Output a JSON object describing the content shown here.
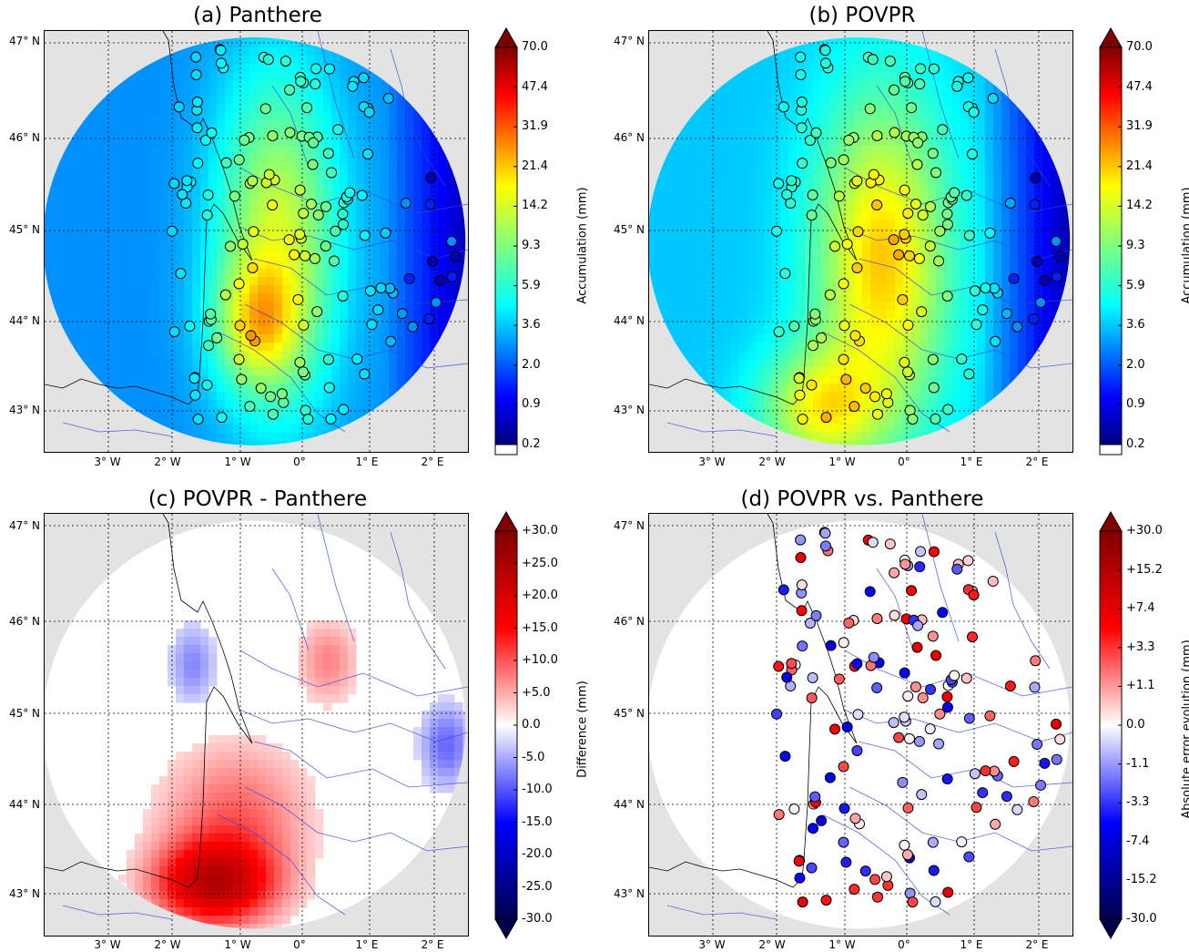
{
  "panels": [
    {
      "id": "a",
      "title": "(a) Panthere",
      "colorbar": {
        "label": "Accumulation (mm)",
        "ticks": [
          "70.0",
          "47.4",
          "31.9",
          "21.4",
          "14.2",
          "9.3",
          "5.9",
          "3.6",
          "2.0",
          "0.9",
          "0.2"
        ],
        "colormap": "jet",
        "extend": "max"
      }
    },
    {
      "id": "b",
      "title": "(b) POVPR",
      "colorbar": {
        "label": "Accumulation (mm)",
        "ticks": [
          "70.0",
          "47.4",
          "31.9",
          "21.4",
          "14.2",
          "9.3",
          "5.9",
          "3.6",
          "2.0",
          "0.9",
          "0.2"
        ],
        "colormap": "jet",
        "extend": "max"
      }
    },
    {
      "id": "c",
      "title": "(c) POVPR - Panthere",
      "colorbar": {
        "label": "Difference (mm)",
        "ticks": [
          "+30.0",
          "+25.0",
          "+20.0",
          "+15.0",
          "+10.0",
          "+5.0",
          "0.0",
          "-5.0",
          "-10.0",
          "-15.0",
          "-20.0",
          "-25.0",
          "-30.0"
        ],
        "colormap": "seismic",
        "extend": "both"
      }
    },
    {
      "id": "d",
      "title": "(d) POVPR vs. Panthere",
      "colorbar": {
        "label": "Absolute error evolution (mm)",
        "ticks": [
          "+30.0",
          "+15.2",
          "+7.4",
          "+3.3",
          "+1.1",
          "0.0",
          "-1.1",
          "-3.3",
          "-7.4",
          "-15.2",
          "-30.0"
        ],
        "colormap": "seismic",
        "extend": "both"
      }
    }
  ],
  "axes": {
    "lat_labels": [
      "47° N",
      "46° N",
      "45° N",
      "44° N",
      "43° N"
    ],
    "lon_labels": [
      "3° W",
      "2° W",
      "1° W",
      "0°",
      "1° E",
      "2° E"
    ]
  },
  "colors": {
    "land_background": "#e3e3e3",
    "coast": "#000000",
    "rivers": "#3344dd",
    "grid": "#000000"
  }
}
